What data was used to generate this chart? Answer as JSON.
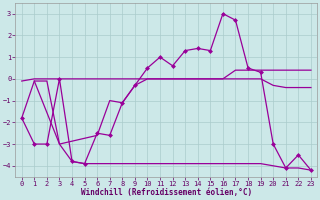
{
  "xlabel": "Windchill (Refroidissement éolien,°C)",
  "background_color": "#cce8e8",
  "grid_color": "#aacccc",
  "line_color": "#990099",
  "xlim_min": -0.5,
  "xlim_max": 23.5,
  "ylim_min": -4.5,
  "ylim_max": 3.5,
  "yticks": [
    -4,
    -3,
    -2,
    -1,
    0,
    1,
    2,
    3
  ],
  "xticks": [
    0,
    1,
    2,
    3,
    4,
    5,
    6,
    7,
    8,
    9,
    10,
    11,
    12,
    13,
    14,
    15,
    16,
    17,
    18,
    19,
    20,
    21,
    22,
    23
  ],
  "line1_x": [
    0,
    1,
    2,
    3,
    4,
    5,
    6,
    7,
    8,
    9,
    10,
    11,
    12,
    13,
    14,
    15,
    16,
    17,
    18,
    19,
    20,
    21,
    22,
    23
  ],
  "line1_y": [
    -1.8,
    -3.0,
    -3.0,
    0.0,
    -3.8,
    -3.9,
    -2.5,
    -2.6,
    -1.1,
    -0.3,
    0.5,
    1.0,
    0.6,
    1.3,
    1.4,
    1.3,
    3.0,
    2.7,
    0.5,
    0.3,
    -3.0,
    -4.1,
    -3.5,
    -4.2
  ],
  "line1_markers": true,
  "line2_x": [
    0,
    1,
    2,
    3,
    4,
    5,
    6,
    7,
    8,
    9,
    10,
    11,
    12,
    13,
    14,
    15,
    16,
    17,
    18,
    19,
    20,
    21,
    22,
    23
  ],
  "line2_y": [
    -0.1,
    -0.0,
    -0.0,
    -0.0,
    -0.0,
    -0.0,
    -0.0,
    -0.0,
    -0.0,
    -0.0,
    -0.0,
    -0.0,
    -0.0,
    -0.0,
    -0.0,
    -0.0,
    -0.0,
    -0.0,
    -0.0,
    -0.0,
    -0.3,
    -0.4,
    -0.4,
    -0.4
  ],
  "line2_markers": false,
  "line3_x": [
    0,
    1,
    2,
    3,
    4,
    5,
    6,
    7,
    8,
    9,
    10,
    11,
    12,
    13,
    14,
    15,
    16,
    17,
    18,
    19,
    20,
    21,
    22,
    23
  ],
  "line3_y": [
    -1.8,
    -0.1,
    -0.1,
    -3.0,
    -3.8,
    -3.9,
    -3.9,
    -3.9,
    -3.9,
    -3.9,
    -3.9,
    -3.9,
    -3.9,
    -3.9,
    -3.9,
    -3.9,
    -3.9,
    -3.9,
    -3.9,
    -3.9,
    -4.0,
    -4.1,
    -4.1,
    -4.2
  ],
  "line3_markers": false,
  "line4_x": [
    1,
    3,
    6,
    7,
    8,
    9,
    10,
    11,
    12,
    13,
    14,
    15,
    16,
    17,
    18,
    19,
    20,
    21,
    22,
    23
  ],
  "line4_y": [
    -0.1,
    -3.0,
    -2.6,
    -1.0,
    -1.1,
    -0.3,
    0.0,
    0.0,
    0.0,
    0.0,
    0.0,
    0.0,
    0.0,
    0.4,
    0.4,
    0.4,
    0.4,
    0.4,
    0.4,
    0.4
  ],
  "line4_markers": false,
  "xlabel_fontsize": 5.5,
  "tick_fontsize": 5,
  "linewidth": 0.9,
  "marker_size": 2.5
}
